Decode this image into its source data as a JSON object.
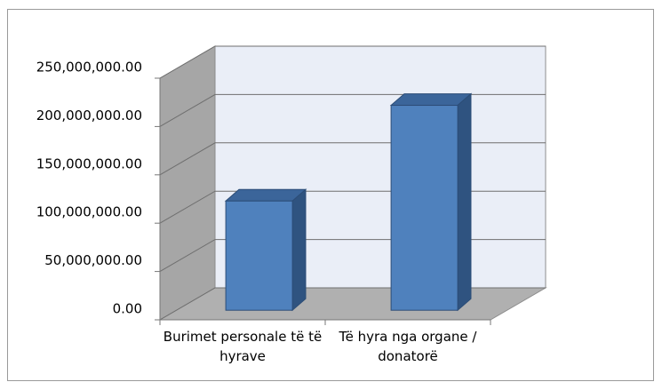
{
  "chart_data": {
    "type": "bar3d",
    "categories": [
      "Burimet personale të të hyrave",
      "Të hyra nga organe / donatorë"
    ],
    "values": [
      113000000,
      212000000
    ],
    "color": "#4f81bd",
    "ylim": [
      0,
      250000000
    ],
    "yticks": [
      {
        "value": 0,
        "label": "0.00"
      },
      {
        "value": 50000000,
        "label": "50,000,000.00"
      },
      {
        "value": 100000000,
        "label": "100,000,000.00"
      },
      {
        "value": 150000000,
        "label": "150,000,000.00"
      },
      {
        "value": 200000000,
        "label": "200,000,000.00"
      },
      {
        "value": 250000000,
        "label": "250,000,000.00"
      }
    ],
    "grid": true
  }
}
